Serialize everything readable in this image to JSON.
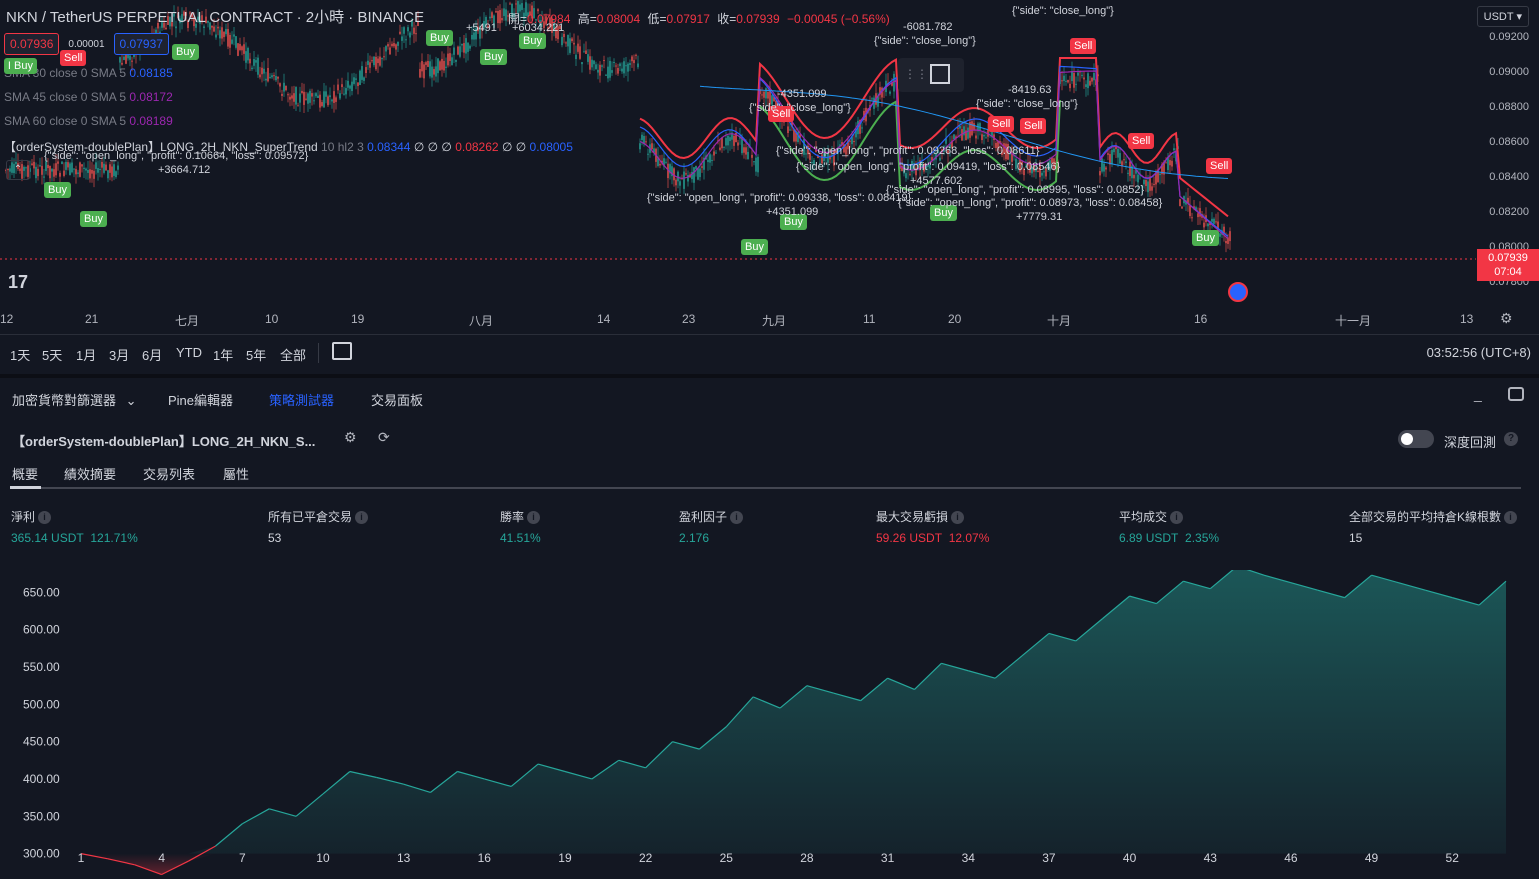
{
  "chart": {
    "symbol_title": "NKN / TetherUS PERPETUAL CONTRACT · 2小時 · BINANCE",
    "ohlc": {
      "open_label": "開=",
      "open": "0.07984",
      "high_label": "高=",
      "high": "0.08004",
      "low_label": "低=",
      "low": "0.07917",
      "close_label": "收=",
      "close": "0.07939",
      "change": "−0.00045 (−0.56%)"
    },
    "sell_price": "0.07936",
    "spread": "0.00001",
    "buy_price": "0.07937",
    "indicators": [
      {
        "name": "SMA 30 close 0 SMA 5",
        "value": "0.08185"
      },
      {
        "name": "SMA 45 close 0 SMA 5",
        "value": "0.08172"
      },
      {
        "name": "SMA 60 close 0 SMA 5",
        "value": "0.08189"
      }
    ],
    "strategy_line": {
      "name": "【orderSystem-doublePlan】LONG_2H_NKN_SuperTrend",
      "params": "10 hl2 3",
      "v1": "0.08344",
      "empties1": "∅ ∅ ∅",
      "v2": "0.08262",
      "empties2": "∅ ∅",
      "v3": "0.08005"
    },
    "currency": "USDT",
    "price_ticks": [
      "0.09200",
      "0.09000",
      "0.08800",
      "0.08600",
      "0.08400",
      "0.08200",
      "0.08000",
      "0.07800"
    ],
    "last_price": "0.07939",
    "countdown": "07:04",
    "time_ticks": [
      "12",
      "21",
      "七月",
      "10",
      "19",
      "八月",
      "14",
      "23",
      "九月",
      "11",
      "20",
      "十月",
      "16",
      "十一月",
      "13"
    ],
    "markers": [
      {
        "type": "buy",
        "label": "Buy"
      },
      {
        "type": "sell",
        "label": "Sell"
      },
      {
        "type": "buy",
        "label": "Buy"
      },
      {
        "type": "buy",
        "label": "Buy"
      },
      {
        "type": "buy",
        "label": "Buy"
      },
      {
        "type": "buy",
        "label": "Buy"
      },
      {
        "type": "buy",
        "label": "Buy"
      },
      {
        "type": "buy",
        "label": "Buy"
      },
      {
        "type": "sell",
        "label": "Sell"
      },
      {
        "type": "buy",
        "label": "Buy"
      },
      {
        "type": "buy",
        "label": "Buy"
      },
      {
        "type": "buy",
        "label": "Buy"
      },
      {
        "type": "sell",
        "label": "Sell"
      },
      {
        "type": "sell",
        "label": "Sell"
      },
      {
        "type": "sell",
        "label": "Sell"
      },
      {
        "type": "sell",
        "label": "Sell"
      },
      {
        "type": "sell",
        "label": "Sell"
      },
      {
        "type": "buy",
        "label": "Buy"
      },
      {
        "type": "buy",
        "label": "Buy"
      }
    ],
    "notes": [
      "{\"side\": \"close_long\"}",
      "-6081.782",
      "{\"side\": \"close_long\"}",
      "-4351.099",
      "{\"side\": \"close_long\"}",
      "-8419.63",
      "{\"side\": \"close_long\"}",
      "{\"side\": \"open_long\", \"profit\": 0.09268, \"loss\": 0.08611}",
      "{\"side\": \"open_long\", \"profit\": 0.09419, \"loss\": 0.08546}",
      "{\"side\": \"open_long\", \"profit\": 0.09338, \"loss\": 0.08419}",
      "+4351.099",
      "+4577.602",
      "{\"side\": \"open_long\", \"profit\": 0.08995, \"loss\": 0.0852}",
      "{\"side\": \"open_long\", \"profit\": 0.08973, \"loss\": 0.08458}",
      "+7779.31",
      "{\"side\": \"open_long\", \"profit\": 0.10664, \"loss\": 0.09572}",
      "+3664.712",
      "+5491",
      "+6034.221"
    ]
  },
  "range_bar": {
    "ranges": [
      "1天",
      "5天",
      "1月",
      "3月",
      "6月",
      "YTD",
      "1年",
      "5年",
      "全部"
    ],
    "clock": "03:52:56 (UTC+8)"
  },
  "panel": {
    "tabs": [
      "加密貨幣對篩選器",
      "Pine編輯器",
      "策略測試器",
      "交易面板"
    ],
    "strategy_name": "【orderSystem-doublePlan】LONG_2H_NKN_S...",
    "deep_backtest_label": "深度回測",
    "sub_tabs": [
      "概要",
      "績效摘要",
      "交易列表",
      "屬性"
    ],
    "metrics": [
      {
        "label": "淨利",
        "value": "365.14 USDT",
        "pct": "121.71%",
        "color": "green"
      },
      {
        "label": "所有已平倉交易",
        "value": "53",
        "pct": "",
        "color": "white"
      },
      {
        "label": "勝率",
        "value": "41.51%",
        "pct": "",
        "color": "green"
      },
      {
        "label": "盈利因子",
        "value": "2.176",
        "pct": "",
        "color": "green"
      },
      {
        "label": "最大交易虧損",
        "value": "59.26 USDT",
        "pct": "12.07%",
        "color": "red"
      },
      {
        "label": "平均成交",
        "value": "6.89 USDT",
        "pct": "2.35%",
        "color": "green"
      },
      {
        "label": "全部交易的平均持倉K線根數",
        "value": "15",
        "pct": "",
        "color": "white"
      }
    ]
  },
  "chart_data": {
    "type": "area",
    "title": "",
    "xlabel": "",
    "ylabel": "",
    "ylim": [
      270,
      680
    ],
    "y_ticks": [
      "650.00",
      "600.00",
      "550.00",
      "500.00",
      "450.00",
      "400.00",
      "350.00",
      "300.00"
    ],
    "x_ticks": [
      "1",
      "4",
      "7",
      "10",
      "13",
      "16",
      "19",
      "22",
      "25",
      "28",
      "31",
      "34",
      "37",
      "40",
      "43",
      "46",
      "49",
      "52"
    ],
    "x": [
      1,
      2,
      3,
      4,
      5,
      6,
      7,
      8,
      9,
      10,
      11,
      12,
      13,
      14,
      15,
      16,
      17,
      18,
      19,
      20,
      21,
      22,
      23,
      24,
      25,
      26,
      27,
      28,
      29,
      30,
      31,
      32,
      33,
      34,
      35,
      36,
      37,
      38,
      39,
      40,
      41,
      42,
      43,
      44,
      45,
      46,
      47,
      48,
      49,
      50,
      51,
      52,
      53,
      54
    ],
    "values": [
      300,
      293,
      285,
      272,
      290,
      310,
      340,
      360,
      350,
      380,
      410,
      402,
      393,
      382,
      410,
      400,
      390,
      420,
      410,
      400,
      425,
      415,
      450,
      440,
      470,
      510,
      495,
      525,
      515,
      505,
      535,
      520,
      555,
      545,
      535,
      565,
      595,
      585,
      615,
      645,
      635,
      665,
      655,
      685,
      673,
      663,
      653,
      643,
      673,
      663,
      653,
      643,
      633,
      665
    ],
    "colors": {
      "up": "#26a69a",
      "down": "#f23645"
    }
  }
}
